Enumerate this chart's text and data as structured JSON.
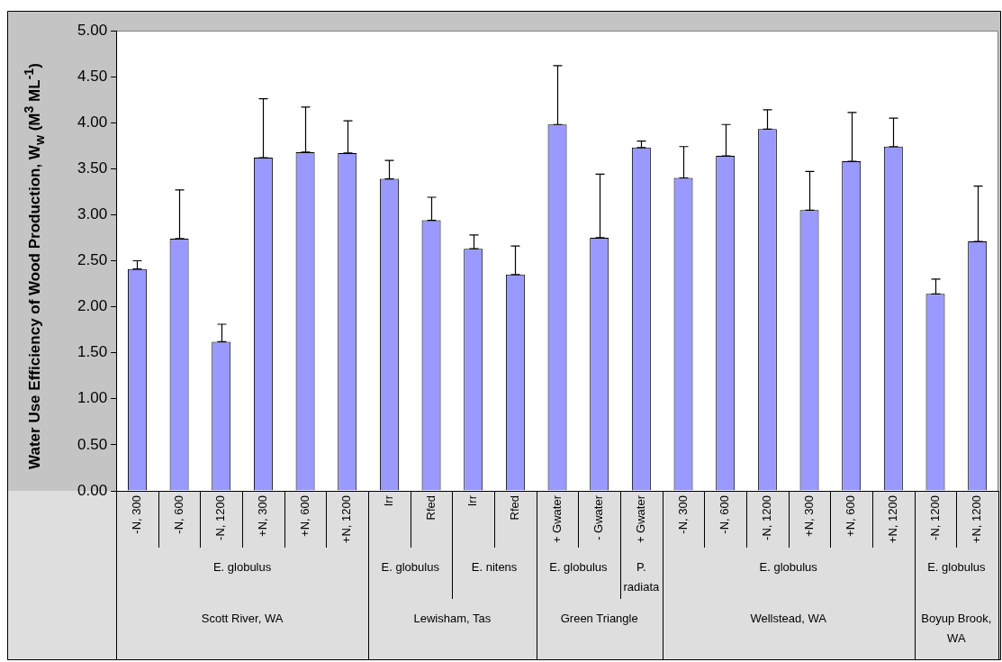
{
  "chart_data": {
    "type": "bar",
    "ylabel": "Water Use Efficiency of Wood Production,  W$_{w}$ (M$^{3}$ ML$^{-1}$)",
    "categories": [
      "-N, 300",
      "-N, 600",
      "-N, 1200",
      "+N, 300",
      "+N, 600",
      "+N, 1200",
      "Irr",
      "Rfed",
      "Irr",
      "Rfed",
      "+ Gwater",
      "- Gwater",
      "+ Gwater",
      "-N, 300",
      "-N, 600",
      "-N, 1200",
      "+N, 300",
      "+N, 600",
      "+N, 1200",
      "-N, 1200",
      "+N, 1200"
    ],
    "values": [
      2.41,
      2.74,
      1.62,
      3.62,
      3.68,
      3.67,
      3.39,
      2.94,
      2.63,
      2.35,
      3.98,
      2.75,
      3.73,
      3.4,
      3.64,
      3.93,
      3.05,
      3.58,
      3.74,
      2.14,
      2.71
    ],
    "errors": [
      [
        2.41,
        2.5
      ],
      [
        2.74,
        3.27
      ],
      [
        1.62,
        1.81
      ],
      [
        3.62,
        4.26
      ],
      [
        3.68,
        4.17
      ],
      [
        3.67,
        4.02
      ],
      [
        3.39,
        3.59
      ],
      [
        2.94,
        3.19
      ],
      [
        2.63,
        2.78
      ],
      [
        2.35,
        2.66
      ],
      [
        3.98,
        4.62
      ],
      [
        2.75,
        3.44
      ],
      [
        3.73,
        3.8
      ],
      [
        3.4,
        3.74
      ],
      [
        3.64,
        3.98
      ],
      [
        3.93,
        4.14
      ],
      [
        3.05,
        3.47
      ],
      [
        3.58,
        4.11
      ],
      [
        3.74,
        4.05
      ],
      [
        2.14,
        2.3
      ],
      [
        2.71,
        3.31
      ]
    ],
    "color": "#9999ff",
    "ylim": [
      0,
      5
    ],
    "yticks": [
      {
        "value": 0,
        "label": "0.00"
      },
      {
        "value": 0.5,
        "label": "0.50"
      },
      {
        "value": 1,
        "label": "1.00"
      },
      {
        "value": 1.5,
        "label": "1.50"
      },
      {
        "value": 2,
        "label": "2.00"
      },
      {
        "value": 2.5,
        "label": "2.50"
      },
      {
        "value": 3,
        "label": "3.00"
      },
      {
        "value": 3.5,
        "label": "3.50"
      },
      {
        "value": 4,
        "label": "4.00"
      },
      {
        "value": 4.5,
        "label": "4.50"
      },
      {
        "value": 5,
        "label": "5.00"
      }
    ],
    "annotations": [
      "E. globulus",
      "E. globulus",
      "E. nitens",
      "E. globulus",
      "P. radiata",
      "E. globulus",
      "E. globulus",
      "Scott River, WA",
      "Lewisham, Tas",
      "Green Triangle",
      "Wellstead, WA",
      "Boyup Brook, WA"
    ],
    "grid": false,
    "legend": false
  }
}
